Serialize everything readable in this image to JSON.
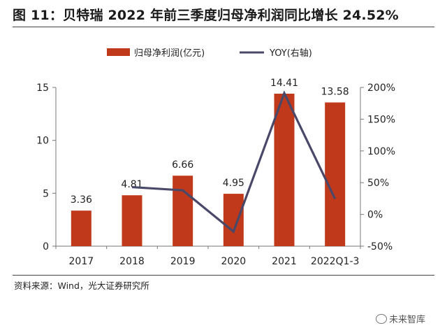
{
  "title": "图 11：贝特瑞 2022 年前三季度归母净利润同比增长 24.52%",
  "source": "资料来源：Wind，光大证券研究所",
  "watermark": "未来智库",
  "colors": {
    "bar": "#C0391B",
    "line": "#4A4869",
    "axis": "#777777",
    "text": "#222222"
  },
  "chart_data": {
    "type": "bar",
    "categories": [
      "2017",
      "2018",
      "2019",
      "2020",
      "2021",
      "2022Q1-3"
    ],
    "series": [
      {
        "name": "归母净利润(亿元)",
        "type": "bar",
        "axis": "left",
        "values": [
          3.36,
          4.81,
          6.66,
          4.95,
          14.41,
          13.58
        ],
        "labels": [
          "3.36",
          "4.81",
          "6.66",
          "4.95",
          "14.41",
          "13.58"
        ]
      },
      {
        "name": "YOY(右轴)",
        "type": "line",
        "axis": "right",
        "values": [
          null,
          43,
          38,
          -27,
          191,
          24.52
        ]
      }
    ],
    "y_left": {
      "min": 0,
      "max": 15,
      "ticks": [
        0,
        5,
        10,
        15
      ],
      "tick_labels": [
        "0",
        "5",
        "10",
        "15"
      ]
    },
    "y_right": {
      "min": -50,
      "max": 200,
      "ticks": [
        -50,
        0,
        50,
        100,
        150,
        200
      ],
      "tick_labels": [
        "-50%",
        "0%",
        "50%",
        "100%",
        "150%",
        "200%"
      ]
    },
    "legend_position": "top-center",
    "grid": false
  }
}
